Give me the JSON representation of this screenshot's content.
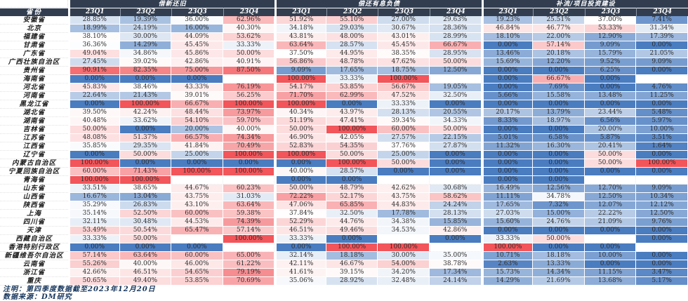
{
  "chart_data": {
    "type": "heatmap",
    "unit": "%",
    "row_label_header": "省份",
    "column_groups": [
      "借新还旧",
      "偿还有息负债",
      "补流/项目投资建设"
    ],
    "columns": [
      "23Q1",
      "23Q2",
      "23Q3",
      "23Q4",
      "23Q1",
      "23Q2",
      "23Q3",
      "23Q4",
      "23Q1",
      "23Q2",
      "23Q3",
      "23Q4"
    ],
    "color_scale": {
      "low_color": "#4A7CC0",
      "mid_color": "#FFFFFF",
      "high_color": "#F2555A",
      "min": 0,
      "midpoint": 37,
      "max": 100
    },
    "rows": [
      {
        "province": "安徽省",
        "values": [
          28.85,
          19.39,
          36.0,
          62.96,
          51.92,
          55.1,
          27.0,
          29.63,
          19.23,
          25.51,
          37.0,
          7.41
        ]
      },
      {
        "province": "北京",
        "values": [
          18.99,
          24.19,
          16.0,
          40.3,
          34.18,
          29.03,
          30.67,
          28.36,
          46.84,
          46.77,
          53.33,
          31.34
        ]
      },
      {
        "province": "福建省",
        "values": [
          38.1,
          30.0,
          44.09,
          53.62,
          43.81,
          48.0,
          43.01,
          28.99,
          18.1,
          22.0,
          12.9,
          17.39
        ]
      },
      {
        "province": "甘肃省",
        "values": [
          36.36,
          14.29,
          45.45,
          33.33,
          63.64,
          28.57,
          45.45,
          66.67,
          0.0,
          57.14,
          9.09,
          0.0
        ]
      },
      {
        "province": "广东省",
        "values": [
          49.04,
          34.86,
          45.86,
          50.0,
          37.5,
          44.95,
          38.35,
          28.95,
          13.46,
          20.18,
          15.79,
          21.05
        ]
      },
      {
        "province": "广西壮族自治区",
        "values": [
          27.45,
          39.02,
          42.86,
          40.91,
          56.86,
          48.78,
          47.62,
          50.0,
          15.69,
          12.2,
          9.52,
          9.09
        ]
      },
      {
        "province": "贵州省",
        "values": [
          90.91,
          82.35,
          75.0,
          87.5,
          9.09,
          17.65,
          18.75,
          12.5,
          0.0,
          0.0,
          6.25,
          0.0
        ]
      },
      {
        "province": "海南省",
        "values": [
          0.0,
          0.0,
          0.0,
          null,
          100.0,
          33.33,
          100.0,
          null,
          0.0,
          66.67,
          0.0,
          null
        ]
      },
      {
        "province": "河北省",
        "values": [
          45.83,
          38.46,
          43.33,
          76.19,
          54.17,
          53.85,
          56.67,
          19.05,
          0.0,
          7.69,
          0.0,
          4.76
        ]
      },
      {
        "province": "河南省",
        "values": [
          22.64,
          21.43,
          39.01,
          56.25,
          71.7,
          62.99,
          47.52,
          32.5,
          5.66,
          15.58,
          13.48,
          11.25
        ]
      },
      {
        "province": "黑龙江省",
        "values": [
          0.0,
          100.0,
          66.67,
          100.0,
          100.0,
          0.0,
          33.33,
          0.0,
          0.0,
          0.0,
          0.0,
          0.0
        ]
      },
      {
        "province": "湖北省",
        "values": [
          39.5,
          42.24,
          48.44,
          73.97,
          40.34,
          43.97,
          28.13,
          20.55,
          20.17,
          13.79,
          23.44,
          5.48
        ]
      },
      {
        "province": "湖南省",
        "values": [
          40.48,
          33.62,
          54.1,
          59.7,
          51.19,
          47.41,
          39.34,
          34.33,
          8.33,
          18.97,
          6.56,
          5.97
        ]
      },
      {
        "province": "吉林省",
        "values": [
          50.0,
          0.0,
          20.0,
          40.0,
          50.0,
          100.0,
          60.0,
          50.0,
          0.0,
          0.0,
          20.0,
          10.0
        ]
      },
      {
        "province": "江苏省",
        "values": [
          48.08,
          51.37,
          66.57,
          74.34,
          46.9,
          42.05,
          27.57,
          22.15,
          5.01,
          6.58,
          5.87,
          3.51
        ]
      },
      {
        "province": "江西省",
        "values": [
          35.85,
          29.35,
          41.84,
          70.49,
          52.83,
          54.35,
          37.76,
          27.87,
          11.32,
          16.3,
          20.41,
          1.64
        ]
      },
      {
        "province": "辽宁省",
        "values": [
          0.0,
          50.0,
          25.0,
          100.0,
          100.0,
          50.0,
          25.0,
          0.0,
          0.0,
          0.0,
          50.0,
          0.0
        ]
      },
      {
        "province": "内蒙古自治区",
        "values": [
          100.0,
          0.0,
          0.0,
          0.0,
          0.0,
          100.0,
          50.0,
          0.0,
          0.0,
          0.0,
          50.0,
          100.0
        ]
      },
      {
        "province": "宁夏回族自治区",
        "values": [
          60.0,
          71.43,
          100.0,
          100.0,
          40.0,
          28.57,
          0.0,
          0.0,
          0.0,
          0.0,
          0.0,
          0.0
        ]
      },
      {
        "province": "青海省",
        "values": [
          100.0,
          100.0,
          null,
          null,
          0.0,
          0.0,
          null,
          null,
          0.0,
          0.0,
          null,
          null
        ]
      },
      {
        "province": "山东省",
        "values": [
          33.51,
          38.65,
          44.67,
          60.23,
          50.0,
          48.79,
          42.62,
          30.68,
          16.49,
          12.56,
          12.7,
          9.09
        ]
      },
      {
        "province": "山西省",
        "values": [
          16.67,
          13.04,
          43.75,
          31.03,
          72.22,
          52.17,
          43.75,
          58.62,
          11.11,
          34.78,
          12.5,
          10.34
        ]
      },
      {
        "province": "陕西省",
        "values": [
          35.29,
          26.83,
          43.1,
          63.64,
          47.06,
          65.85,
          44.83,
          24.24,
          17.65,
          7.32,
          12.07,
          12.12
        ]
      },
      {
        "province": "上海",
        "values": [
          35.14,
          52.5,
          60.0,
          59.38,
          37.84,
          32.5,
          17.78,
          28.13,
          27.03,
          15.0,
          22.22,
          12.5
        ]
      },
      {
        "province": "四川省",
        "values": [
          32.11,
          30.48,
          44.53,
          74.39,
          52.29,
          44.76,
          34.38,
          15.85,
          15.6,
          24.76,
          21.09,
          9.76
        ]
      },
      {
        "province": "天津",
        "values": [
          53.49,
          50.54,
          65.47,
          57.14,
          46.51,
          49.46,
          34.53,
          42.86,
          0.0,
          0.0,
          0.0,
          0.0
        ]
      },
      {
        "province": "西藏自治区",
        "values": [
          33.33,
          50.0,
          null,
          100.0,
          33.33,
          0.0,
          null,
          0.0,
          33.33,
          50.0,
          null,
          0.0
        ]
      },
      {
        "province": "香港特别行政区",
        "values": [
          0.0,
          0.0,
          0.0,
          null,
          0.0,
          100.0,
          100.0,
          null,
          100.0,
          0.0,
          0.0,
          null
        ]
      },
      {
        "province": "新疆维吾尔自治区",
        "values": [
          57.14,
          63.64,
          60.0,
          65.0,
          32.14,
          18.18,
          30.0,
          35.0,
          10.71,
          18.18,
          10.0,
          0.0
        ]
      },
      {
        "province": "云南省",
        "values": [
          55.26,
          40.0,
          46.0,
          61.22,
          42.11,
          46.67,
          54.0,
          38.78,
          2.63,
          13.33,
          0.0,
          0.0
        ]
      },
      {
        "province": "浙江省",
        "values": [
          42.66,
          46.51,
          54.65,
          79.19,
          41.61,
          39.15,
          34.2,
          17.34,
          15.73,
          14.34,
          11.15,
          3.47
        ]
      },
      {
        "province": "重庆",
        "values": [
          50.65,
          49.4,
          53.85,
          70.69,
          35.06,
          28.92,
          32.48,
          24.14,
          14.29,
          21.69,
          13.68,
          5.17
        ]
      }
    ]
  },
  "notes": {
    "note1": "注明：第四季度数据截至2023年12月20日",
    "note2": "数据来源：DM研究"
  },
  "colors": {
    "header_bg": "#323E50",
    "note_text": "#16365C"
  }
}
